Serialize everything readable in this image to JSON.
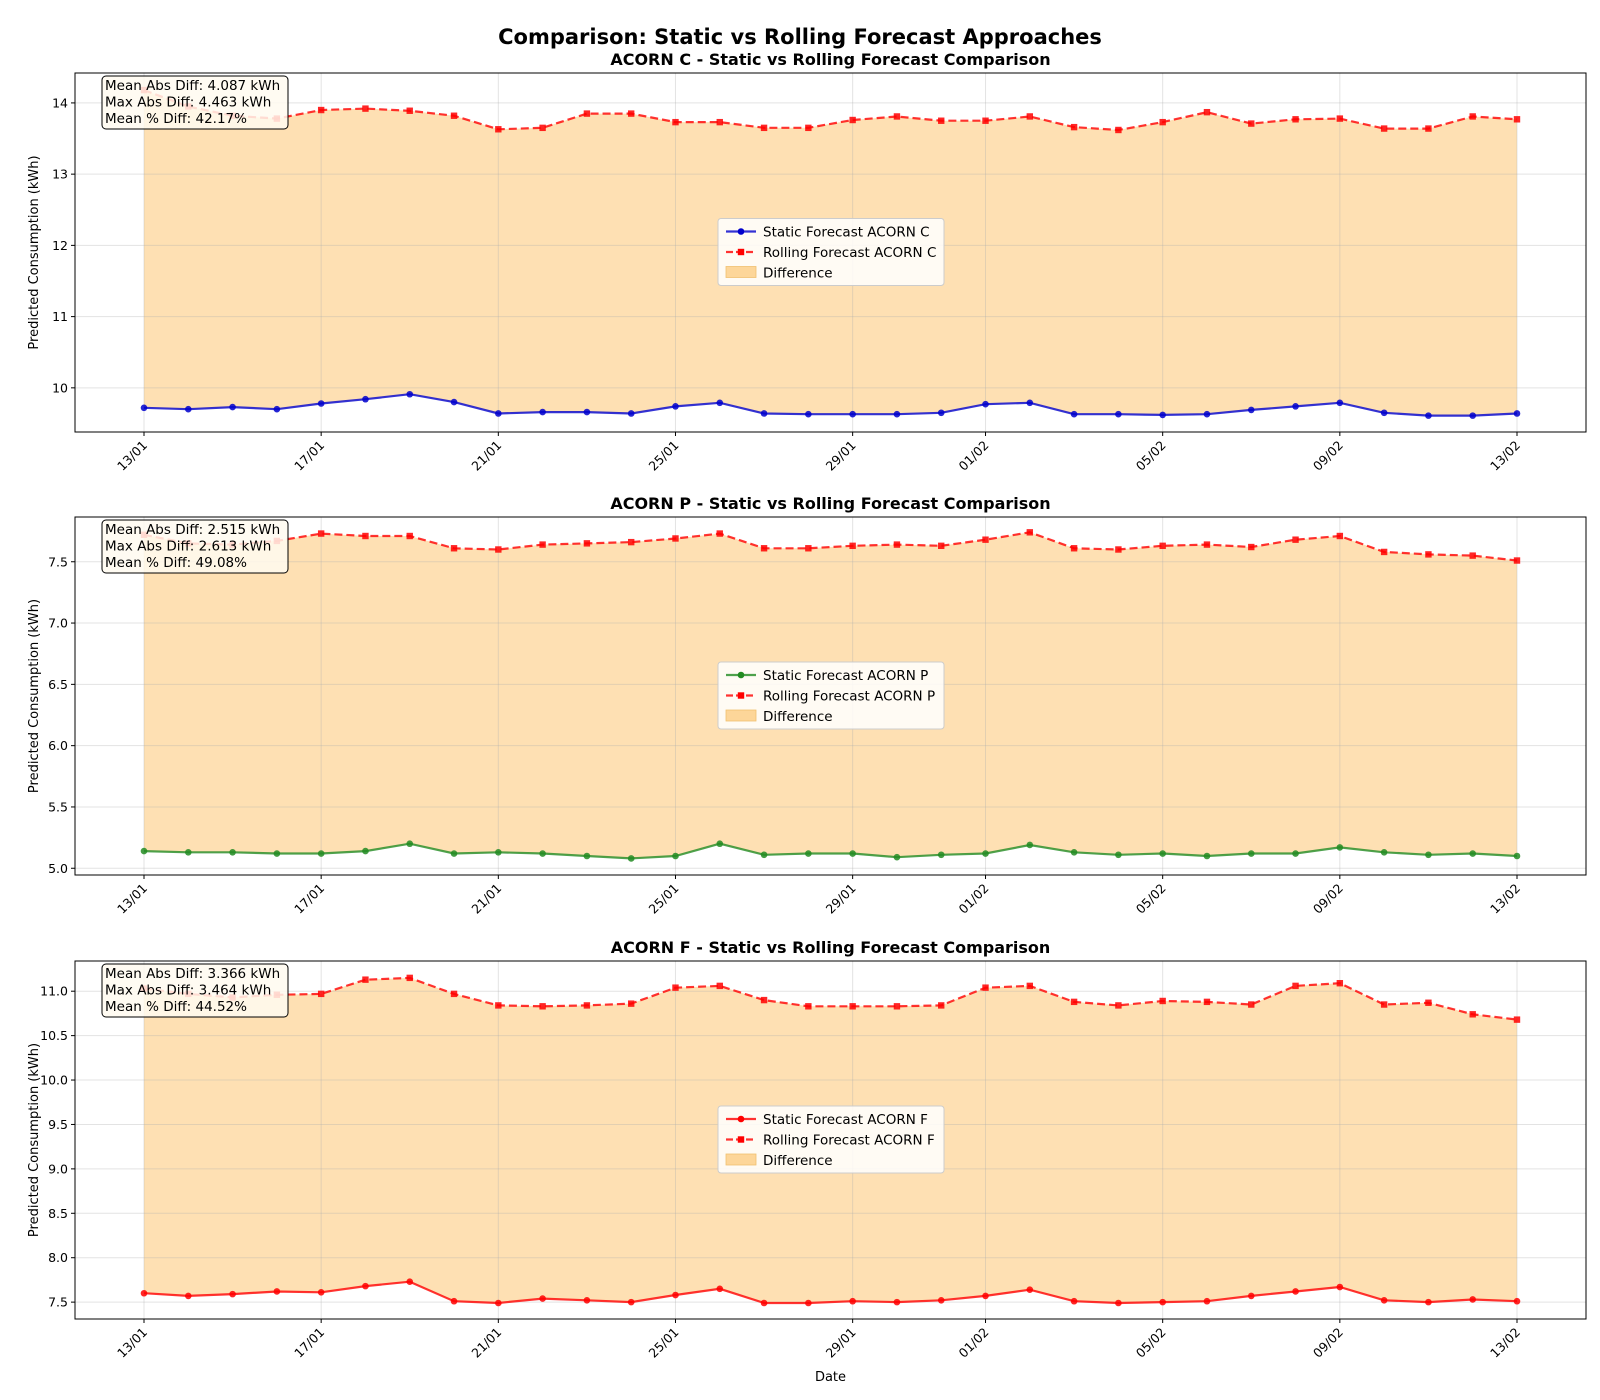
{
  "suptitle": "Comparison: Static vs Rolling Forecast Approaches",
  "chart_data": [
    {
      "type": "line",
      "title": "ACORN C - Static vs Rolling Forecast Comparison",
      "xlabel": "",
      "ylabel": "Predicted Consumption (kWh)",
      "x": [
        "2024-01-13",
        "2024-01-14",
        "2024-01-15",
        "2024-01-16",
        "2024-01-17",
        "2024-01-18",
        "2024-01-19",
        "2024-01-20",
        "2024-01-21",
        "2024-01-22",
        "2024-01-23",
        "2024-01-24",
        "2024-01-25",
        "2024-01-26",
        "2024-01-27",
        "2024-01-28",
        "2024-01-29",
        "2024-01-30",
        "2024-01-31",
        "2024-02-01",
        "2024-02-02",
        "2024-02-03",
        "2024-02-04",
        "2024-02-05",
        "2024-02-06",
        "2024-02-07",
        "2024-02-08",
        "2024-02-09",
        "2024-02-10",
        "2024-02-11",
        "2024-02-12",
        "2024-02-13"
      ],
      "ylim": [
        9.38,
        14.42
      ],
      "yticks": [
        10,
        11,
        12,
        13,
        14
      ],
      "xtick_labels": [
        "13/01",
        "17/01",
        "21/01",
        "25/01",
        "29/01",
        "01/02",
        "05/02",
        "09/02",
        "13/02"
      ],
      "grid": true,
      "legend_position": "center",
      "series": [
        {
          "name": "Static Forecast ACORN C",
          "color": "#0000cc",
          "style": "solid",
          "marker": "circle",
          "values": [
            9.72,
            9.7,
            9.73,
            9.7,
            9.78,
            9.84,
            9.91,
            9.8,
            9.64,
            9.66,
            9.66,
            9.64,
            9.74,
            9.79,
            9.64,
            9.63,
            9.63,
            9.63,
            9.65,
            9.77,
            9.79,
            9.63,
            9.63,
            9.62,
            9.63,
            9.69,
            9.74,
            9.79,
            9.65,
            9.61,
            9.61,
            9.64
          ]
        },
        {
          "name": "Rolling Forecast ACORN C",
          "color": "#ff0000",
          "style": "dashed",
          "marker": "square",
          "values": [
            14.18,
            13.95,
            13.82,
            13.78,
            13.9,
            13.92,
            13.89,
            13.82,
            13.63,
            13.65,
            13.85,
            13.85,
            13.73,
            13.73,
            13.65,
            13.65,
            13.76,
            13.81,
            13.75,
            13.75,
            13.81,
            13.66,
            13.62,
            13.73,
            13.87,
            13.71,
            13.77,
            13.78,
            13.64,
            13.64,
            13.81,
            13.77
          ]
        }
      ],
      "fill_label": "Difference",
      "fill_color": "#fdd699",
      "stats": [
        "Mean Abs Diff: 4.087 kWh",
        "Max Abs Diff: 4.463 kWh",
        "Mean % Diff: 42.17%"
      ]
    },
    {
      "type": "line",
      "title": "ACORN P - Static vs Rolling Forecast Comparison",
      "xlabel": "",
      "ylabel": "Predicted Consumption (kWh)",
      "x": [
        "2024-01-13",
        "2024-01-14",
        "2024-01-15",
        "2024-01-16",
        "2024-01-17",
        "2024-01-18",
        "2024-01-19",
        "2024-01-20",
        "2024-01-21",
        "2024-01-22",
        "2024-01-23",
        "2024-01-24",
        "2024-01-25",
        "2024-01-26",
        "2024-01-27",
        "2024-01-28",
        "2024-01-29",
        "2024-01-30",
        "2024-01-31",
        "2024-02-01",
        "2024-02-02",
        "2024-02-03",
        "2024-02-04",
        "2024-02-05",
        "2024-02-06",
        "2024-02-07",
        "2024-02-08",
        "2024-02-09",
        "2024-02-10",
        "2024-02-11",
        "2024-02-12",
        "2024-02-13"
      ],
      "ylim": [
        4.945,
        7.865
      ],
      "yticks": [
        5.0,
        5.5,
        6.0,
        6.5,
        7.0,
        7.5
      ],
      "xtick_labels": [
        "13/01",
        "17/01",
        "21/01",
        "25/01",
        "29/01",
        "01/02",
        "05/02",
        "09/02",
        "13/02"
      ],
      "grid": true,
      "legend_position": "center",
      "series": [
        {
          "name": "Static Forecast ACORN P",
          "color": "#228b22",
          "style": "solid",
          "marker": "circle",
          "values": [
            5.14,
            5.13,
            5.13,
            5.12,
            5.12,
            5.14,
            5.2,
            5.12,
            5.13,
            5.12,
            5.1,
            5.08,
            5.1,
            5.2,
            5.11,
            5.12,
            5.12,
            5.09,
            5.11,
            5.12,
            5.19,
            5.13,
            5.11,
            5.12,
            5.1,
            5.12,
            5.12,
            5.17,
            5.13,
            5.11,
            5.12,
            5.1
          ]
        },
        {
          "name": "Rolling Forecast ACORN P",
          "color": "#ff0000",
          "style": "dashed",
          "marker": "square",
          "values": [
            7.72,
            7.65,
            7.64,
            7.67,
            7.73,
            7.71,
            7.71,
            7.61,
            7.6,
            7.64,
            7.65,
            7.66,
            7.69,
            7.73,
            7.61,
            7.61,
            7.63,
            7.64,
            7.63,
            7.68,
            7.74,
            7.61,
            7.6,
            7.63,
            7.64,
            7.62,
            7.68,
            7.71,
            7.58,
            7.56,
            7.55,
            7.51
          ]
        }
      ],
      "fill_label": "Difference",
      "fill_color": "#fdd699",
      "stats": [
        "Mean Abs Diff: 2.515 kWh",
        "Max Abs Diff: 2.613 kWh",
        "Mean % Diff: 49.08%"
      ]
    },
    {
      "type": "line",
      "title": "ACORN F - Static vs Rolling Forecast Comparison",
      "xlabel": "Date",
      "ylabel": "Predicted Consumption (kWh)",
      "x": [
        "2024-01-13",
        "2024-01-14",
        "2024-01-15",
        "2024-01-16",
        "2024-01-17",
        "2024-01-18",
        "2024-01-19",
        "2024-01-20",
        "2024-01-21",
        "2024-01-22",
        "2024-01-23",
        "2024-01-24",
        "2024-01-25",
        "2024-01-26",
        "2024-01-27",
        "2024-01-28",
        "2024-01-29",
        "2024-01-30",
        "2024-01-31",
        "2024-02-01",
        "2024-02-02",
        "2024-02-03",
        "2024-02-04",
        "2024-02-05",
        "2024-02-06",
        "2024-02-07",
        "2024-02-08",
        "2024-02-09",
        "2024-02-10",
        "2024-02-11",
        "2024-02-12",
        "2024-02-13"
      ],
      "ylim": [
        7.31,
        11.34
      ],
      "yticks": [
        7.5,
        8.0,
        8.5,
        9.0,
        9.5,
        10.0,
        10.5,
        11.0
      ],
      "xtick_labels": [
        "13/01",
        "17/01",
        "21/01",
        "25/01",
        "29/01",
        "01/02",
        "05/02",
        "09/02",
        "13/02"
      ],
      "grid": true,
      "legend_position": "center",
      "series": [
        {
          "name": "Static Forecast ACORN F",
          "color": "#ff0000",
          "style": "solid",
          "marker": "circle",
          "values": [
            7.6,
            7.57,
            7.59,
            7.62,
            7.61,
            7.68,
            7.73,
            7.51,
            7.49,
            7.54,
            7.52,
            7.5,
            7.58,
            7.65,
            7.49,
            7.49,
            7.51,
            7.5,
            7.52,
            7.57,
            7.64,
            7.51,
            7.49,
            7.5,
            7.51,
            7.57,
            7.62,
            7.67,
            7.52,
            7.5,
            7.53,
            7.51
          ]
        },
        {
          "name": "Rolling Forecast ACORN F",
          "color": "#ff0000",
          "style": "dashed",
          "marker": "square",
          "values": [
            11.03,
            10.97,
            10.93,
            10.96,
            10.97,
            11.13,
            11.15,
            10.97,
            10.84,
            10.83,
            10.84,
            10.86,
            11.04,
            11.06,
            10.9,
            10.83,
            10.83,
            10.83,
            10.84,
            11.04,
            11.06,
            10.88,
            10.84,
            10.89,
            10.88,
            10.85,
            11.06,
            11.09,
            10.85,
            10.87,
            10.74,
            10.68
          ]
        }
      ],
      "fill_label": "Difference",
      "fill_color": "#fdd699",
      "stats": [
        "Mean Abs Diff: 3.366 kWh",
        "Max Abs Diff: 3.464 kWh",
        "Mean % Diff: 44.52%"
      ]
    }
  ]
}
